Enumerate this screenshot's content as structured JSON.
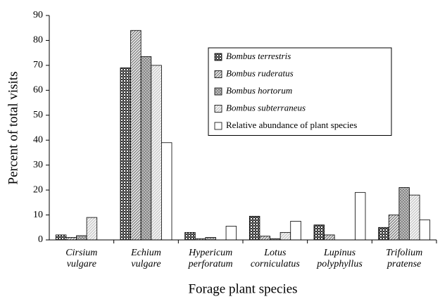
{
  "chart_data": {
    "type": "bar",
    "x_label": "Forage plant species",
    "y_label": "Percent of total visits",
    "categories": [
      "Cirsium vulgare",
      "Echium vulgare",
      "Hypericum perforatum",
      "Lotus corniculatus",
      "Lupinus polyphyllus",
      "Trifolium pratense"
    ],
    "series": [
      {
        "name": "Bombus terrestris",
        "color": "#333333",
        "pattern": "checker",
        "values": [
          2,
          69,
          3,
          9.5,
          6,
          5
        ]
      },
      {
        "name": "Bombus ruderatus",
        "color": "#888888",
        "pattern": "hatch",
        "values": [
          1,
          84,
          0.5,
          1.5,
          2,
          10
        ]
      },
      {
        "name": "Bombus hortorum",
        "color": "#777777",
        "pattern": "dots",
        "values": [
          1.7,
          73.5,
          1,
          0.5,
          0,
          21
        ]
      },
      {
        "name": "Bombus subterraneus",
        "color": "#cccccc",
        "pattern": "hatch",
        "values": [
          9,
          70,
          0,
          3,
          0,
          18
        ]
      },
      {
        "name": "Relative abundance of plant species",
        "color": "#ffffff",
        "pattern": "none",
        "values": [
          0,
          39,
          5.5,
          7.5,
          19,
          8
        ]
      }
    ],
    "ylim": [
      0,
      90
    ],
    "yticks": [
      0,
      10,
      20,
      30,
      40,
      50,
      60,
      70,
      80,
      90
    ],
    "grid": false,
    "legend": "upper right"
  }
}
